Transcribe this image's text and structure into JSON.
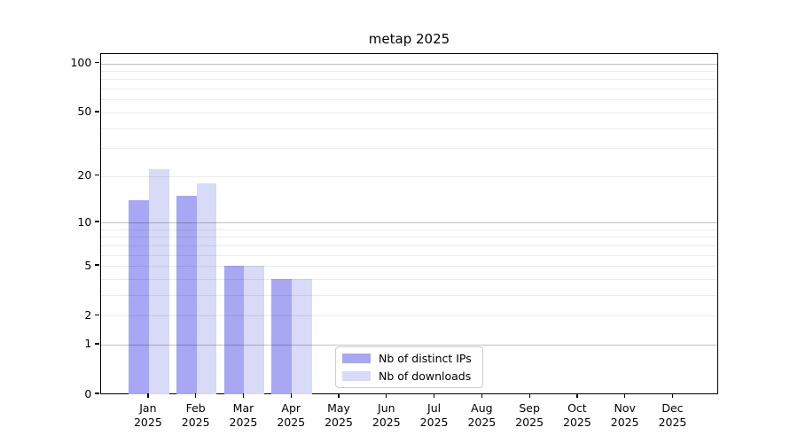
{
  "chart_data": {
    "type": "bar",
    "title": "metap 2025",
    "categories": [
      "Jan",
      "Feb",
      "Mar",
      "Apr",
      "May",
      "Jun",
      "Jul",
      "Aug",
      "Sep",
      "Oct",
      "Nov",
      "Dec"
    ],
    "year_label": "2025",
    "series": [
      {
        "name": "Nb of distinct IPs",
        "color": "#a7a7f3",
        "values": [
          14,
          15,
          5,
          4,
          0,
          0,
          0,
          0,
          0,
          0,
          0,
          0
        ]
      },
      {
        "name": "Nb of downloads",
        "color": "#d9d9f8",
        "values": [
          22,
          18,
          5,
          4,
          0,
          0,
          0,
          0,
          0,
          0,
          0,
          0
        ]
      }
    ],
    "yscale": "log1p",
    "ylim": [
      0,
      113
    ],
    "yticks": [
      0,
      1,
      2,
      5,
      10,
      20,
      50,
      100
    ],
    "ytick_labels": [
      "0",
      "1",
      "2",
      "5",
      "10",
      "20",
      "50",
      "100"
    ],
    "grid": {
      "major": [
        1,
        10,
        100
      ],
      "minor": [
        2,
        3,
        4,
        5,
        6,
        7,
        8,
        9,
        20,
        30,
        40,
        50,
        60,
        70,
        80,
        90
      ]
    },
    "legend_position": "lower center",
    "xlabel": "",
    "ylabel": ""
  }
}
